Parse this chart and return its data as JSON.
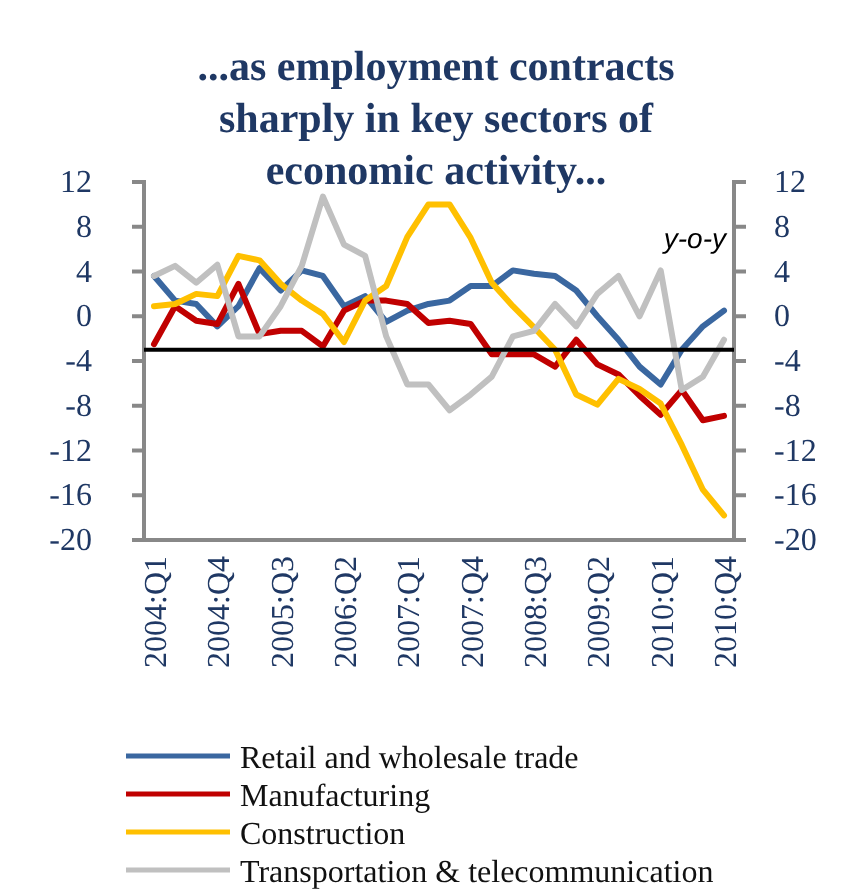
{
  "chart_data": {
    "type": "line",
    "title": "...as employment contracts sharply in key sectors of economic activity...",
    "categories": [
      "2004:Q1",
      null,
      null,
      "2004:Q4",
      null,
      null,
      "2005:Q3",
      null,
      null,
      "2006:Q2",
      null,
      null,
      "2007:Q1",
      null,
      null,
      "2007:Q4",
      null,
      null,
      "2008:Q3",
      null,
      null,
      "2009:Q2",
      null,
      null,
      "2010:Q1",
      null,
      null,
      "2010:Q4"
    ],
    "series": [
      {
        "name": "Retail and wholesale trade",
        "color": "#3a67a0",
        "values": [
          3.6,
          1.4,
          1.1,
          -0.9,
          0.9,
          4.3,
          2.3,
          4.1,
          3.6,
          0.9,
          1.8,
          -0.5,
          0.5,
          1.1,
          1.4,
          2.7,
          2.7,
          4.1,
          3.8,
          3.6,
          2.3,
          0,
          -2.1,
          -4.5,
          -6.1,
          -3,
          -0.9,
          0.5
        ]
      },
      {
        "name": "Manufacturing",
        "color": "#c00000",
        "values": [
          -2.5,
          0.9,
          -0.4,
          -0.7,
          2.9,
          -1.6,
          -1.3,
          -1.3,
          -2.7,
          0.5,
          1.4,
          1.4,
          1.1,
          -0.6,
          -0.4,
          -0.7,
          -3.4,
          -3.4,
          -3.4,
          -4.5,
          -2.1,
          -4.3,
          -5.2,
          -7.1,
          -8.8,
          -6.6,
          -9.3,
          -8.9
        ]
      },
      {
        "name": "Construction",
        "color": "#ffc000",
        "values": [
          0.9,
          1.1,
          2,
          1.8,
          5.4,
          5,
          2.9,
          1.4,
          0.2,
          -2.3,
          1.4,
          2.7,
          7.1,
          10,
          10,
          7,
          3,
          0.9,
          -1,
          -3,
          -7,
          -7.9,
          -5.6,
          -6.5,
          -7.8,
          -11.5,
          -15.5,
          -17.8
        ]
      },
      {
        "name": "Transportation & telecommunication",
        "color": "#c0c0c0",
        "values": [
          3.6,
          4.5,
          3,
          4.6,
          -1.8,
          -1.8,
          0.9,
          4.5,
          10.7,
          6.4,
          5.4,
          -1.8,
          -6.1,
          -6.1,
          -8.4,
          -7,
          -5.4,
          -1.8,
          -1.3,
          1.1,
          -0.9,
          2,
          3.6,
          0,
          4.1,
          -6.6,
          -5.4,
          -2.1
        ]
      }
    ],
    "ylim": [
      -20,
      12
    ],
    "yticks": [
      -20,
      -16,
      -12,
      -8,
      -4,
      0,
      4,
      8,
      12
    ],
    "y2lim": [
      -20,
      12
    ],
    "y2ticks": [
      -20,
      -16,
      -12,
      -8,
      -4,
      0,
      4,
      8,
      12
    ],
    "ref_lines": [
      {
        "axis": "y",
        "value": -3,
        "color": "#000000"
      }
    ],
    "annotations": [
      "y-o-y"
    ],
    "legend": "bottom",
    "grid": false,
    "marker": "none",
    "line_style": "solid"
  }
}
